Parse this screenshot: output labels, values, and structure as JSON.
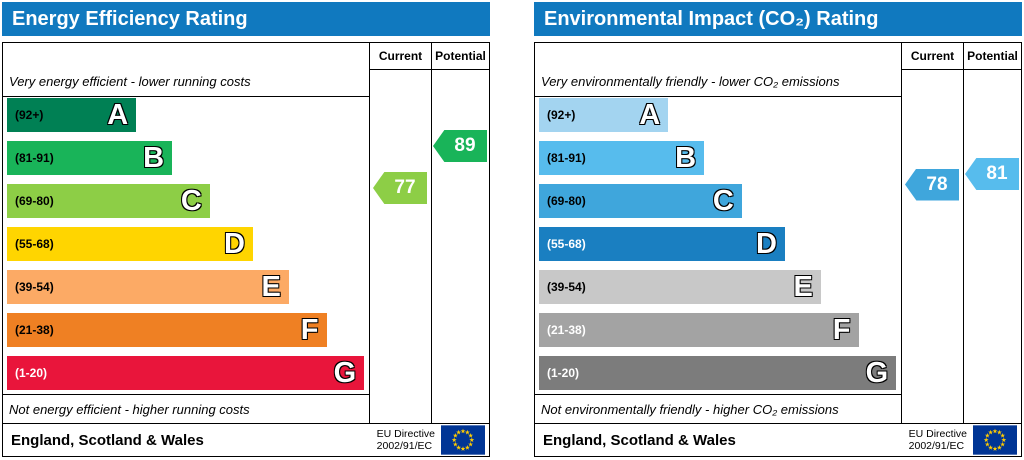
{
  "chart_data": [
    {
      "type": "bar",
      "chart": "epc-energy-efficiency-rating",
      "title": "Energy Efficiency Rating",
      "header_color": "#1079bf",
      "columns": {
        "current_label": "Current",
        "potential_label": "Potential"
      },
      "top_note": "Very energy efficient - lower running costs",
      "bottom_note": "Not energy efficient - higher running costs",
      "bands": [
        {
          "letter": "A",
          "range": "(92+)",
          "min": 92,
          "max": 100,
          "color": "#008054",
          "label_color": "#000000",
          "width_pct": 36
        },
        {
          "letter": "B",
          "range": "(81-91)",
          "min": 81,
          "max": 91,
          "color": "#19b459",
          "label_color": "#000000",
          "width_pct": 46
        },
        {
          "letter": "C",
          "range": "(69-80)",
          "min": 69,
          "max": 80,
          "color": "#8dce46",
          "label_color": "#000000",
          "width_pct": 56.5
        },
        {
          "letter": "D",
          "range": "(55-68)",
          "min": 55,
          "max": 68,
          "color": "#ffd500",
          "label_color": "#000000",
          "width_pct": 68.5
        },
        {
          "letter": "E",
          "range": "(39-54)",
          "min": 39,
          "max": 54,
          "color": "#fcaa65",
          "label_color": "#000000",
          "width_pct": 78.5
        },
        {
          "letter": "F",
          "range": "(21-38)",
          "min": 21,
          "max": 38,
          "color": "#ef8023",
          "label_color": "#000000",
          "width_pct": 89
        },
        {
          "letter": "G",
          "range": "(1-20)",
          "min": 1,
          "max": 20,
          "color": "#e9153b",
          "label_color": "#ffffff",
          "width_pct": 99.5
        }
      ],
      "current": {
        "value": 77,
        "band": "C",
        "color": "#8dce46"
      },
      "potential": {
        "value": 89,
        "band": "B",
        "color": "#19b459"
      },
      "footer": {
        "region": "England, Scotland & Wales",
        "directive_line1": "EU Directive",
        "directive_line2": "2002/91/EC"
      }
    },
    {
      "type": "bar",
      "chart": "epc-environmental-impact-co2-rating",
      "title": "Environmental Impact (CO₂) Rating",
      "header_color": "#1079bf",
      "columns": {
        "current_label": "Current",
        "potential_label": "Potential"
      },
      "top_note": "Very environmentally friendly - lower CO₂ emissions",
      "bottom_note": "Not environmentally friendly - higher CO₂ emissions",
      "bands": [
        {
          "letter": "A",
          "range": "(92+)",
          "min": 92,
          "max": 100,
          "color": "#a3d4f0",
          "label_color": "#000000",
          "width_pct": 36
        },
        {
          "letter": "B",
          "range": "(81-91)",
          "min": 81,
          "max": 91,
          "color": "#57bced",
          "label_color": "#000000",
          "width_pct": 46
        },
        {
          "letter": "C",
          "range": "(69-80)",
          "min": 69,
          "max": 80,
          "color": "#3fa6dc",
          "label_color": "#000000",
          "width_pct": 56.5
        },
        {
          "letter": "D",
          "range": "(55-68)",
          "min": 55,
          "max": 68,
          "color": "#1a7fc1",
          "label_color": "#ffffff",
          "width_pct": 68.5
        },
        {
          "letter": "E",
          "range": "(39-54)",
          "min": 39,
          "max": 54,
          "color": "#c8c8c8",
          "label_color": "#000000",
          "width_pct": 78.5
        },
        {
          "letter": "F",
          "range": "(21-38)",
          "min": 21,
          "max": 38,
          "color": "#a3a3a3",
          "label_color": "#ffffff",
          "width_pct": 89
        },
        {
          "letter": "G",
          "range": "(1-20)",
          "min": 1,
          "max": 20,
          "color": "#7c7c7c",
          "label_color": "#ffffff",
          "width_pct": 99.5
        }
      ],
      "current": {
        "value": 78,
        "band": "C",
        "color": "#3fa6dc"
      },
      "potential": {
        "value": 81,
        "band": "B",
        "color": "#57bced"
      },
      "footer": {
        "region": "England, Scotland & Wales",
        "directive_line1": "EU Directive",
        "directive_line2": "2002/91/EC"
      }
    }
  ]
}
